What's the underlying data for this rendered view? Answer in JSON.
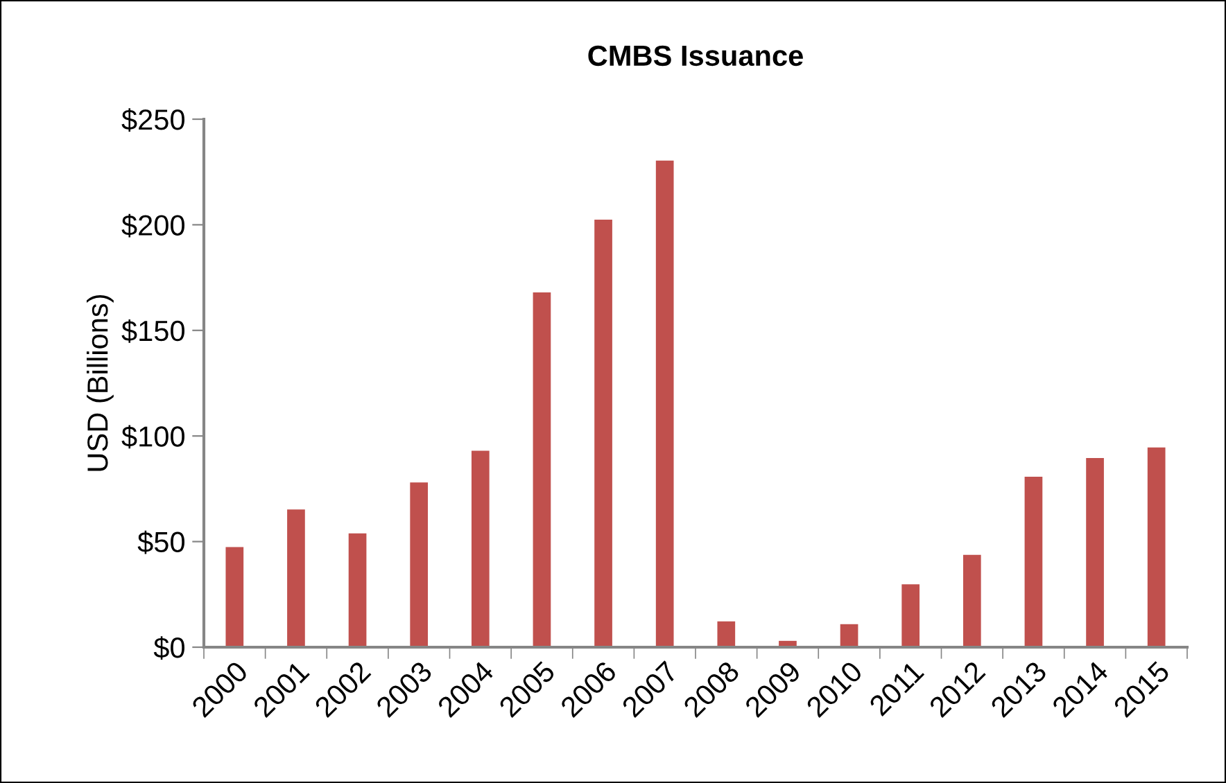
{
  "chart_data": {
    "type": "bar",
    "title": "CMBS Issuance",
    "ylabel": "USD (Billions)",
    "categories": [
      "2000",
      "2001",
      "2002",
      "2003",
      "2004",
      "2005",
      "2006",
      "2007",
      "2008",
      "2009",
      "2010",
      "2011",
      "2012",
      "2013",
      "2014",
      "2015"
    ],
    "values": [
      47.4,
      65.2,
      53.9,
      78,
      93,
      168,
      202.4,
      230.4,
      12.2,
      3,
      10.9,
      29.8,
      43.7,
      80.7,
      89.6,
      94.6
    ],
    "color": "#c0504d",
    "ylim": [
      0,
      250
    ],
    "yticks": [
      {
        "value": 0,
        "label": "$0"
      },
      {
        "value": 50,
        "label": "$50"
      },
      {
        "value": 100,
        "label": "$100"
      },
      {
        "value": 150,
        "label": "$150"
      },
      {
        "value": 200,
        "label": "$200"
      },
      {
        "value": 250,
        "label": "$250"
      }
    ],
    "grid": false,
    "legend": false
  }
}
